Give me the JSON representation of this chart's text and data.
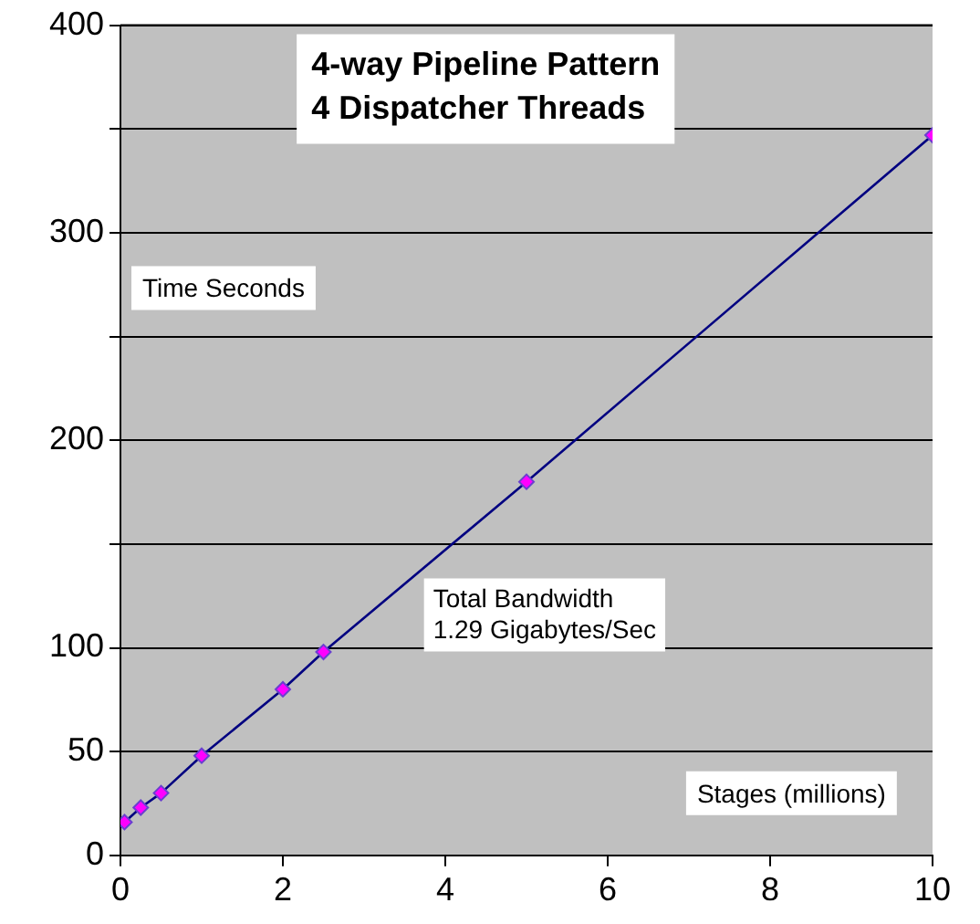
{
  "chart_data": {
    "type": "line",
    "title": [
      "4-way Pipeline Pattern",
      "4 Dispatcher Threads"
    ],
    "ylabel": "Time Seconds",
    "xlabel": "Stages (millions)",
    "annotations": [
      "Total Bandwidth\n1.29 Gigabytes/Sec"
    ],
    "series": [
      {
        "color": "#000080",
        "x": [
          0.05,
          0.25,
          0.5,
          1,
          2,
          2.5,
          5,
          10
        ],
        "values": [
          16,
          23,
          30,
          48,
          80,
          98,
          180,
          347
        ]
      }
    ],
    "xlim": [
      0,
      10
    ],
    "xticks": [
      0,
      2,
      4,
      6,
      8,
      10
    ],
    "ylim": [
      0,
      400
    ],
    "yticks": [
      0,
      50,
      100,
      {
        "value": 150,
        "label": null
      },
      200,
      {
        "value": 250,
        "label": null
      },
      300,
      {
        "value": 350,
        "label": null
      },
      400
    ],
    "grid": "y",
    "marker": "diamond",
    "line_style": "solid",
    "legend": false
  }
}
